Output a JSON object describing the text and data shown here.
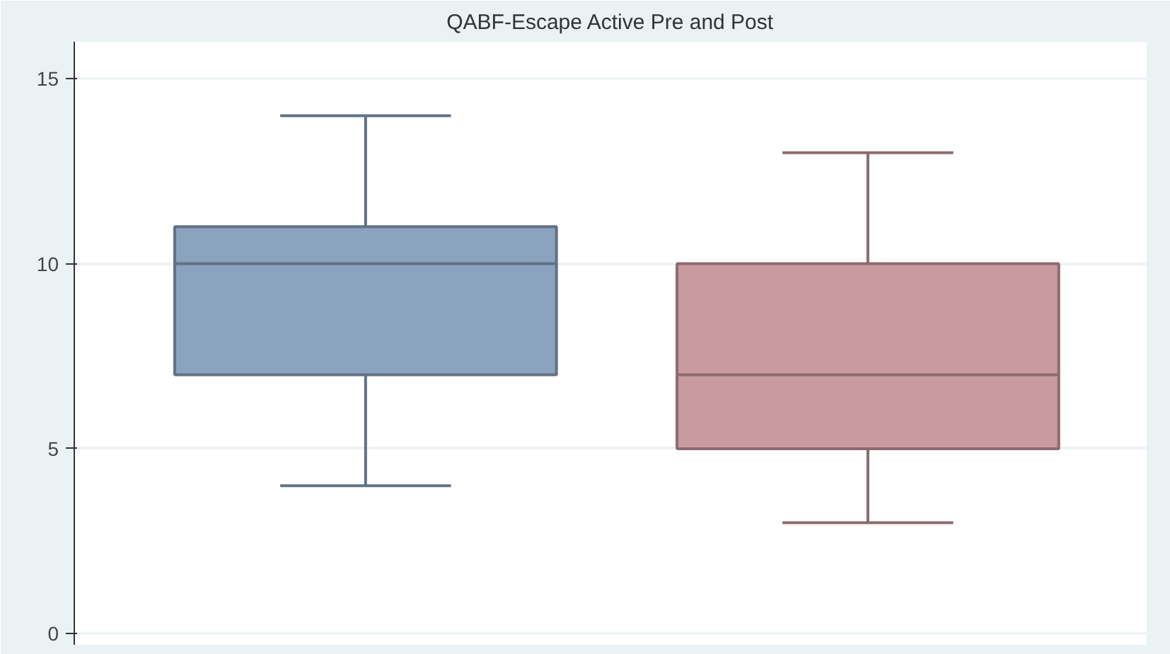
{
  "chart_data": {
    "type": "box",
    "title": "QABF-Escape Active Pre and Post",
    "categories": [
      null,
      null
    ],
    "boxes": [
      {
        "low": 4,
        "q1": 7,
        "median": 10,
        "q3": 11,
        "high": 14
      },
      {
        "low": 3,
        "q1": 5,
        "median": 7,
        "q3": 10,
        "high": 13
      }
    ],
    "colors": [
      "#8ba3be",
      "#c99aa0"
    ],
    "ylim": [
      -0.3,
      16
    ],
    "yticks": [
      0,
      5,
      10,
      15
    ],
    "grid": "y"
  }
}
